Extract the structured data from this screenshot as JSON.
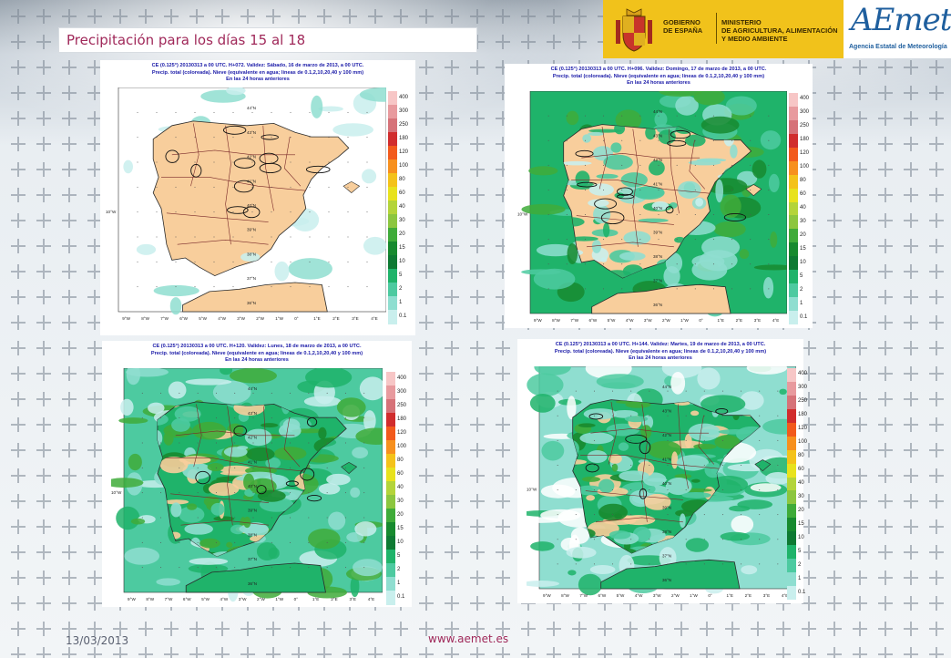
{
  "title": "Precipitación para los días 15 al 18",
  "header": {
    "gov_label": "GOBIERNO\nDE ESPAÑA",
    "ministry_label": "MINISTERIO\nDE AGRICULTURA, ALIMENTACIÓN\nY MEDIO AMBIENTE",
    "aemet_wordmark": "AEmet",
    "aemet_agency": "Agencia Estatal de Meteorología",
    "gov_color": "#f1c21b",
    "aemet_color": "#1f5f9e"
  },
  "footer": {
    "date": "13/03/2013",
    "url": "www.aemet.es"
  },
  "colors": {
    "title": "#a0295a",
    "map_header": "#1a1aa8",
    "land_dry": "#f8ce9c",
    "sea": "#ffffff"
  },
  "legend": {
    "levels": [
      "400",
      "300",
      "250",
      "180",
      "120",
      "100",
      "80",
      "60",
      "40",
      "30",
      "20",
      "15",
      "10",
      "5",
      "2",
      "1",
      "0.1"
    ],
    "colors": [
      "#f7c6c6",
      "#e89a9e",
      "#d67278",
      "#d12d2d",
      "#f25a1c",
      "#f7901e",
      "#f4c21a",
      "#e8e21d",
      "#b4d43a",
      "#8cc63f",
      "#3fab39",
      "#178a2f",
      "#0e7a33",
      "#1fb36a",
      "#4dcaa0",
      "#8fded0",
      "#c9efed"
    ]
  },
  "axes": {
    "lon_ticks": [
      "9°W",
      "8°W",
      "7°W",
      "6°W",
      "5°W",
      "4°W",
      "3°W",
      "2°W",
      "1°W",
      "0°",
      "1°E",
      "2°E",
      "3°E",
      "4°E"
    ],
    "lat_ticks": [
      "44°N",
      "43°N",
      "42°N",
      "41°N",
      "40°N",
      "39°N",
      "38°N",
      "37°N",
      "36°N"
    ],
    "side_label": "10°W"
  },
  "panels": [
    {
      "id": "sabado",
      "header": [
        "CE (0.125°) 20130313 a 00 UTC.  H+072.  Validez: Sábado, 16 de marzo de 2013,  a  00 UTC.",
        "Precip. total (coloreada). Nieve (equivalente en agua; líneas de 0.1,2,10,20,40 y 100 mm)",
        "En las 24 horas anteriores"
      ]
    },
    {
      "id": "domingo",
      "header": [
        "CE (0.125°) 20130313 a 00 UTC.  H+096.  Validez: Domingo,  17 de marzo de 2013,  a  00 UTC.",
        "Precip. total (coloreada). Nieve (equivalente en agua; líneas de 0.1,2,10,20,40 y 100 mm)",
        "En las 24 horas anteriores"
      ]
    },
    {
      "id": "lunes",
      "header": [
        "CE (0.125°) 20130313 a 00 UTC.  H+120.  Validez: Lunes,  18 de marzo de 2013,  a  00 UTC.",
        "Precip. total (coloreada). Nieve (equivalente en agua; líneas de 0.1,2,10,20,40 y 100 mm)",
        "En las 24 horas anteriores"
      ]
    },
    {
      "id": "martes",
      "header": [
        "CE (0.125°) 20130313 a 00 UTC.  H+144.  Validez: Martes,  19 de marzo de 2013,  a  00 UTC.",
        "Precip. total (coloreada). Nieve (equivalente en agua; líneas de 0.1,2,10,20,40 y 100 mm)",
        "En las 24 horas anteriores"
      ]
    }
  ]
}
